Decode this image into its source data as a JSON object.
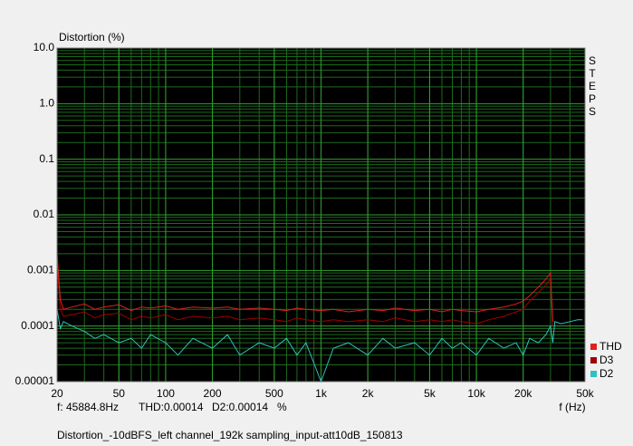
{
  "chart_data": {
    "type": "line",
    "title": "Distortion (%)",
    "x_label": "f (Hz)",
    "side_label": "STEPS",
    "status": {
      "frequency": "f: 45884.8Hz",
      "thd": "THD:0.00014",
      "d2": "D2:0.00014",
      "unit": "%"
    },
    "footer": "Distortion_-10dBFS_left channel_192k sampling_input-att10dB_150813",
    "log_x": true,
    "log_y": true,
    "grid": true,
    "legend": "lower right",
    "xlim": [
      20,
      50000
    ],
    "xticks": [
      20,
      50,
      100,
      200,
      500,
      {
        "value": 1000,
        "label": "1k"
      },
      {
        "value": 2000,
        "label": "2k"
      },
      {
        "value": 5000,
        "label": "5k"
      },
      {
        "value": 10000,
        "label": "10k"
      },
      {
        "value": 20000,
        "label": "20k"
      },
      {
        "value": 50000,
        "label": "50k"
      }
    ],
    "ylim": [
      1e-05,
      10
    ],
    "yticks": [
      1e-05,
      0.0001,
      0.001,
      0.01,
      0.1,
      {
        "value": 1,
        "label": "1.0"
      },
      {
        "value": 10,
        "label": "10.0"
      }
    ],
    "x": [
      20,
      21,
      22,
      25,
      30,
      35,
      40,
      50,
      60,
      70,
      80,
      100,
      120,
      150,
      200,
      250,
      300,
      400,
      500,
      600,
      700,
      800,
      1000,
      1200,
      1500,
      2000,
      2500,
      3000,
      4000,
      5000,
      6000,
      7000,
      8000,
      10000,
      12000,
      15000,
      18000,
      20000,
      22000,
      25000,
      28000,
      30000,
      31000,
      32000,
      35000,
      40000,
      45000,
      48000
    ],
    "series": [
      {
        "name": "THD",
        "color": "#e02020",
        "values": [
          0.002,
          0.0003,
          0.0002,
          0.00022,
          0.00025,
          0.0002,
          0.00022,
          0.00024,
          0.00019,
          0.00022,
          0.00021,
          0.00023,
          0.0002,
          0.00022,
          0.00021,
          0.00022,
          0.0002,
          0.00021,
          0.0002,
          0.00019,
          0.00021,
          0.0002,
          0.00019,
          0.0002,
          0.00018,
          0.0002,
          0.00019,
          0.00021,
          0.00019,
          0.0002,
          0.00018,
          0.0002,
          0.00019,
          0.00018,
          0.0002,
          0.00022,
          0.00025,
          0.00028,
          0.00035,
          0.0005,
          0.0007,
          0.0009,
          0.00012,
          null,
          null,
          null,
          null,
          null
        ]
      },
      {
        "name": "D3",
        "color": "#a00000",
        "values": [
          0.0015,
          0.0002,
          0.00015,
          0.00016,
          0.00018,
          0.00014,
          0.00016,
          0.00017,
          0.00013,
          0.00015,
          0.00014,
          0.00016,
          0.00013,
          0.00015,
          0.00014,
          0.00015,
          0.00013,
          0.00014,
          0.00013,
          0.00012,
          0.00014,
          0.00013,
          0.00012,
          0.00013,
          0.00012,
          0.00013,
          0.00012,
          0.00014,
          0.00012,
          0.00013,
          0.00012,
          0.00013,
          0.00012,
          0.00011,
          0.00013,
          0.00015,
          0.00018,
          0.0002,
          0.00028,
          0.0004,
          0.00055,
          0.0007,
          0.0001,
          null,
          null,
          null,
          null,
          null
        ]
      },
      {
        "name": "D2",
        "color": "#30c0c0",
        "values": [
          0.0002,
          9e-05,
          0.00012,
          0.0001,
          8e-05,
          6e-05,
          7e-05,
          5e-05,
          6e-05,
          4e-05,
          7e-05,
          5e-05,
          3e-05,
          6e-05,
          4e-05,
          7e-05,
          3e-05,
          5e-05,
          4e-05,
          6e-05,
          3e-05,
          5e-05,
          1e-05,
          4e-05,
          5e-05,
          3e-05,
          6e-05,
          4e-05,
          5e-05,
          3e-05,
          6e-05,
          4e-05,
          5e-05,
          3e-05,
          6e-05,
          4e-05,
          5e-05,
          3e-05,
          6e-05,
          5e-05,
          7e-05,
          0.0001,
          5e-05,
          0.00012,
          0.00011,
          0.00012,
          0.00013,
          0.00013
        ]
      }
    ]
  }
}
